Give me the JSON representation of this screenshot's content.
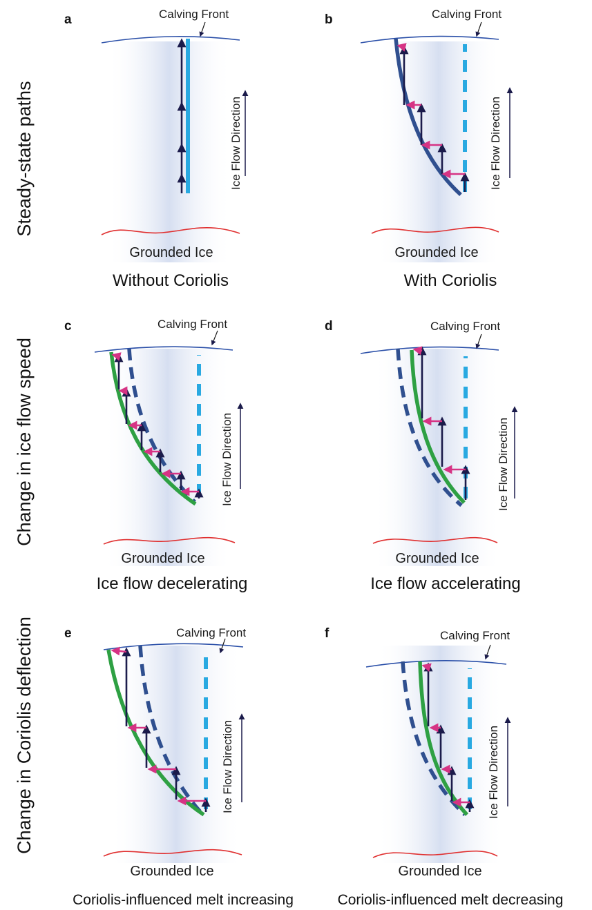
{
  "row_titles": [
    "Steady-state paths",
    "Change in ice flow speed",
    "Change in Coriolis deflection"
  ],
  "panels": [
    {
      "letter": "a",
      "calving_front": "Calving Front",
      "grounded_ice": "Grounded Ice",
      "flow_label": "Ice Flow Direction",
      "caption": "Without Coriolis"
    },
    {
      "letter": "b",
      "calving_front": "Calving Front",
      "grounded_ice": "Grounded Ice",
      "flow_label": "Ice Flow Direction",
      "caption": "With Coriolis"
    },
    {
      "letter": "c",
      "calving_front": "Calving Front",
      "grounded_ice": "Grounded Ice",
      "flow_label": "Ice Flow Direction",
      "caption": "Ice flow decelerating"
    },
    {
      "letter": "d",
      "calving_front": "Calving Front",
      "grounded_ice": "Grounded Ice",
      "flow_label": "Ice Flow Direction",
      "caption": "Ice flow accelerating"
    },
    {
      "letter": "e",
      "calving_front": "Calving Front",
      "grounded_ice": "Grounded Ice",
      "flow_label": "Ice Flow Direction",
      "caption": "Coriolis-influenced melt increasing"
    },
    {
      "letter": "f",
      "calving_front": "Calving Front",
      "grounded_ice": "Grounded Ice",
      "flow_label": "Ice Flow Direction",
      "caption": "Coriolis-influenced melt decreasing"
    }
  ],
  "colors": {
    "calving_front_line": "#2a4fa8",
    "grounding_line": "#e03030",
    "straight_path": "#29a9e1",
    "dashed_reference": "#29a9e1",
    "steady_curve": "#2f4f8f",
    "new_curve": "#2ea043",
    "flow_arrow": "#1b1b4b",
    "coriolis_arrow": "#d63384",
    "ice_shade": "#cfd9ee"
  }
}
